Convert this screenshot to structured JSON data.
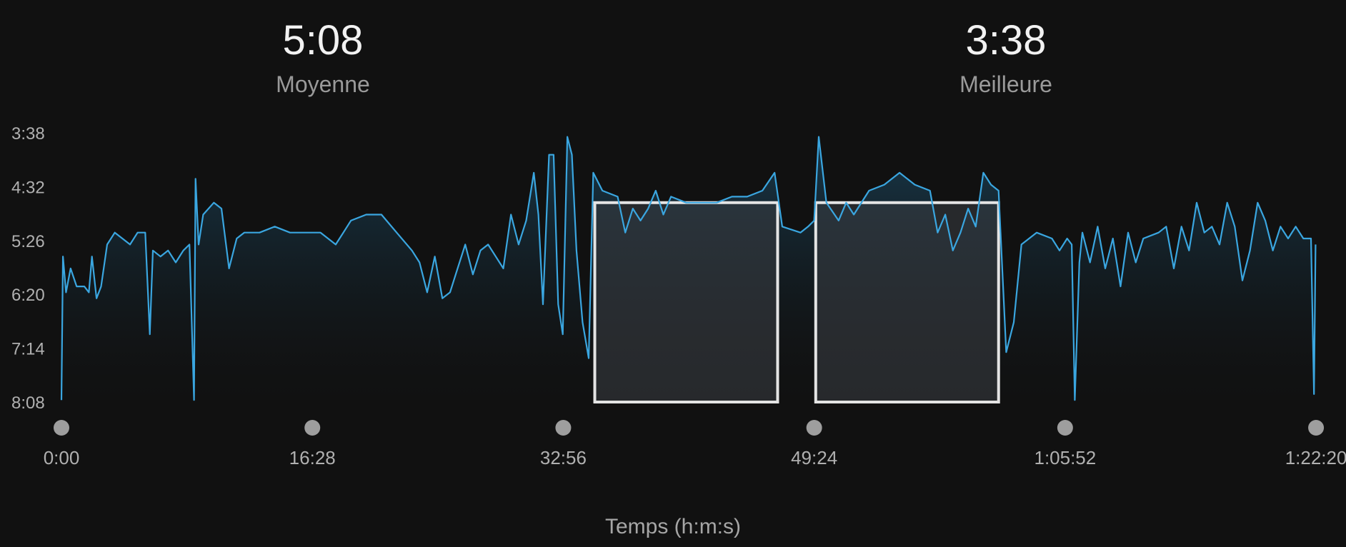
{
  "stats": {
    "average": {
      "value": "5:08",
      "label": "Moyenne"
    },
    "best": {
      "value": "3:38",
      "label": "Meilleure"
    }
  },
  "chart_data": {
    "type": "area",
    "xlabel": "Temps (h:m:s)",
    "ylabel": "",
    "x_unit": "minutes",
    "y_unit": "pace (min/km)",
    "y_inverted": true,
    "xlim": [
      0,
      82.33
    ],
    "ylim": [
      8.133,
      3.633
    ],
    "y_ticks": [
      {
        "value": 3.633,
        "label": "3:38"
      },
      {
        "value": 4.533,
        "label": "4:32"
      },
      {
        "value": 5.433,
        "label": "5:26"
      },
      {
        "value": 6.333,
        "label": "6:20"
      },
      {
        "value": 7.233,
        "label": "7:14"
      },
      {
        "value": 8.133,
        "label": "8:08"
      }
    ],
    "x_ticks": [
      {
        "value": 0,
        "label": "0:00"
      },
      {
        "value": 16.467,
        "label": "16:28"
      },
      {
        "value": 32.933,
        "label": "32:56"
      },
      {
        "value": 49.4,
        "label": "49:24"
      },
      {
        "value": 65.867,
        "label": "1:05:52"
      },
      {
        "value": 82.333,
        "label": "1:22:20"
      }
    ],
    "highlight_intervals": [
      {
        "x_start": 35.0,
        "x_end": 47.0,
        "y": 4.8
      },
      {
        "x_start": 49.5,
        "x_end": 61.5,
        "y": 4.8
      }
    ],
    "grid": false,
    "colors": {
      "line": "#3aa6e0",
      "highlight": "#e4e4e4"
    },
    "series": [
      {
        "values": [
          [
            0.0,
            8.1
          ],
          [
            0.1,
            5.7
          ],
          [
            0.3,
            6.3
          ],
          [
            0.6,
            5.9
          ],
          [
            1.0,
            6.2
          ],
          [
            1.5,
            6.2
          ],
          [
            1.8,
            6.3
          ],
          [
            2.0,
            5.7
          ],
          [
            2.3,
            6.4
          ],
          [
            2.6,
            6.2
          ],
          [
            3.0,
            5.5
          ],
          [
            3.5,
            5.3
          ],
          [
            4.0,
            5.4
          ],
          [
            4.5,
            5.5
          ],
          [
            5.0,
            5.3
          ],
          [
            5.5,
            5.3
          ],
          [
            5.8,
            7.0
          ],
          [
            6.0,
            5.6
          ],
          [
            6.5,
            5.7
          ],
          [
            7.0,
            5.6
          ],
          [
            7.5,
            5.8
          ],
          [
            8.0,
            5.6
          ],
          [
            8.4,
            5.5
          ],
          [
            8.7,
            8.1
          ],
          [
            8.8,
            4.4
          ],
          [
            9.0,
            5.5
          ],
          [
            9.3,
            5.0
          ],
          [
            10.0,
            4.8
          ],
          [
            10.5,
            4.9
          ],
          [
            11.0,
            5.9
          ],
          [
            11.5,
            5.4
          ],
          [
            12.0,
            5.3
          ],
          [
            13.0,
            5.3
          ],
          [
            14.0,
            5.2
          ],
          [
            15.0,
            5.3
          ],
          [
            16.0,
            5.3
          ],
          [
            17.0,
            5.3
          ],
          [
            18.0,
            5.5
          ],
          [
            18.5,
            5.3
          ],
          [
            19.0,
            5.1
          ],
          [
            20.0,
            5.0
          ],
          [
            21.0,
            5.0
          ],
          [
            22.0,
            5.3
          ],
          [
            23.0,
            5.6
          ],
          [
            23.5,
            5.8
          ],
          [
            24.0,
            6.3
          ],
          [
            24.5,
            5.7
          ],
          [
            25.0,
            6.4
          ],
          [
            25.5,
            6.3
          ],
          [
            26.0,
            5.9
          ],
          [
            26.5,
            5.5
          ],
          [
            27.0,
            6.0
          ],
          [
            27.5,
            5.6
          ],
          [
            28.0,
            5.5
          ],
          [
            28.5,
            5.7
          ],
          [
            29.0,
            5.9
          ],
          [
            29.5,
            5.0
          ],
          [
            30.0,
            5.5
          ],
          [
            30.5,
            5.1
          ],
          [
            31.0,
            4.3
          ],
          [
            31.3,
            5.0
          ],
          [
            31.6,
            6.5
          ],
          [
            32.0,
            4.0
          ],
          [
            32.3,
            4.0
          ],
          [
            32.6,
            6.5
          ],
          [
            32.9,
            7.0
          ],
          [
            33.2,
            3.7
          ],
          [
            33.5,
            4.0
          ],
          [
            33.8,
            5.6
          ],
          [
            34.2,
            6.8
          ],
          [
            34.6,
            7.4
          ],
          [
            34.9,
            4.3
          ],
          [
            35.5,
            4.6
          ],
          [
            36.5,
            4.7
          ],
          [
            37.0,
            5.3
          ],
          [
            37.5,
            4.9
          ],
          [
            38.0,
            5.1
          ],
          [
            38.5,
            4.9
          ],
          [
            39.0,
            4.6
          ],
          [
            39.5,
            5.0
          ],
          [
            40.0,
            4.7
          ],
          [
            41.0,
            4.8
          ],
          [
            42.0,
            4.8
          ],
          [
            43.0,
            4.8
          ],
          [
            44.0,
            4.7
          ],
          [
            45.0,
            4.7
          ],
          [
            46.0,
            4.6
          ],
          [
            46.8,
            4.3
          ],
          [
            47.3,
            5.2
          ],
          [
            48.5,
            5.3
          ],
          [
            49.0,
            5.2
          ],
          [
            49.4,
            5.1
          ],
          [
            49.7,
            3.7
          ],
          [
            50.2,
            4.8
          ],
          [
            51.0,
            5.1
          ],
          [
            51.5,
            4.8
          ],
          [
            52.0,
            5.0
          ],
          [
            53.0,
            4.6
          ],
          [
            54.0,
            4.5
          ],
          [
            55.0,
            4.3
          ],
          [
            56.0,
            4.5
          ],
          [
            57.0,
            4.6
          ],
          [
            57.5,
            5.3
          ],
          [
            58.0,
            5.0
          ],
          [
            58.5,
            5.6
          ],
          [
            59.0,
            5.3
          ],
          [
            59.5,
            4.9
          ],
          [
            60.0,
            5.2
          ],
          [
            60.5,
            4.3
          ],
          [
            61.0,
            4.5
          ],
          [
            61.5,
            4.6
          ],
          [
            62.0,
            7.3
          ],
          [
            62.5,
            6.8
          ],
          [
            63.0,
            5.5
          ],
          [
            64.0,
            5.3
          ],
          [
            65.0,
            5.4
          ],
          [
            65.5,
            5.6
          ],
          [
            66.0,
            5.4
          ],
          [
            66.3,
            5.5
          ],
          [
            66.5,
            8.1
          ],
          [
            66.8,
            5.8
          ],
          [
            67.0,
            5.3
          ],
          [
            67.5,
            5.8
          ],
          [
            68.0,
            5.2
          ],
          [
            68.5,
            5.9
          ],
          [
            69.0,
            5.4
          ],
          [
            69.5,
            6.2
          ],
          [
            70.0,
            5.3
          ],
          [
            70.5,
            5.8
          ],
          [
            71.0,
            5.4
          ],
          [
            72.0,
            5.3
          ],
          [
            72.5,
            5.2
          ],
          [
            73.0,
            5.9
          ],
          [
            73.5,
            5.2
          ],
          [
            74.0,
            5.6
          ],
          [
            74.5,
            4.8
          ],
          [
            75.0,
            5.3
          ],
          [
            75.5,
            5.2
          ],
          [
            76.0,
            5.5
          ],
          [
            76.5,
            4.8
          ],
          [
            77.0,
            5.2
          ],
          [
            77.5,
            6.1
          ],
          [
            78.0,
            5.6
          ],
          [
            78.5,
            4.8
          ],
          [
            79.0,
            5.1
          ],
          [
            79.5,
            5.6
          ],
          [
            80.0,
            5.2
          ],
          [
            80.5,
            5.4
          ],
          [
            81.0,
            5.2
          ],
          [
            81.5,
            5.4
          ],
          [
            82.0,
            5.4
          ],
          [
            82.2,
            8.0
          ],
          [
            82.3,
            5.5
          ]
        ]
      }
    ]
  }
}
